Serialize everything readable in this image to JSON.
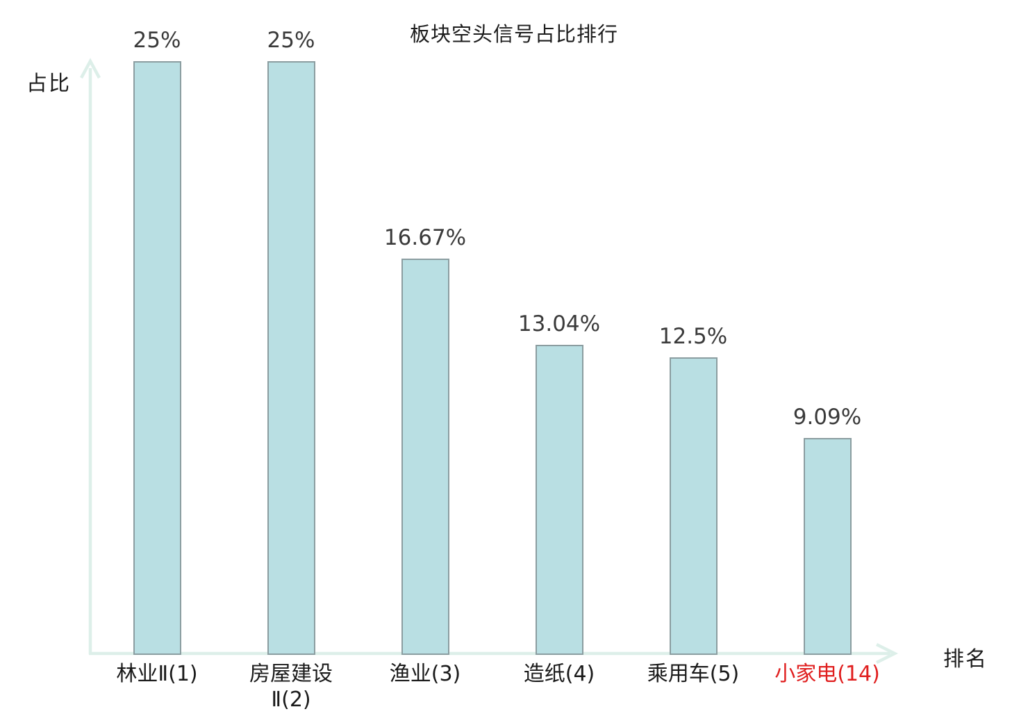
{
  "chart_data": {
    "type": "bar",
    "title": "板块空头信号占比排行",
    "ylabel": "占比",
    "xlabel": "排名",
    "categories": [
      "林业Ⅱ(1)",
      "房屋建设\nⅡ(2)",
      "渔业(3)",
      "造纸(4)",
      "乘用车(5)",
      "小家电(14)"
    ],
    "values": [
      25,
      25,
      16.67,
      13.04,
      12.5,
      9.09
    ],
    "value_labels": [
      "25%",
      "25%",
      "16.67%",
      "13.04%",
      "12.5%",
      "9.09%"
    ],
    "ylim": [
      0,
      25
    ],
    "grid": false,
    "legend": "none",
    "highlight_index": 5,
    "colors": {
      "bar_fill": "#b9dfe3",
      "bar_border": "#8b9da0",
      "axis": "#ddefe9",
      "value_label": "#3a3a3a",
      "category_label": "#1a1a1a",
      "highlight_label": "#e01f1f"
    }
  }
}
